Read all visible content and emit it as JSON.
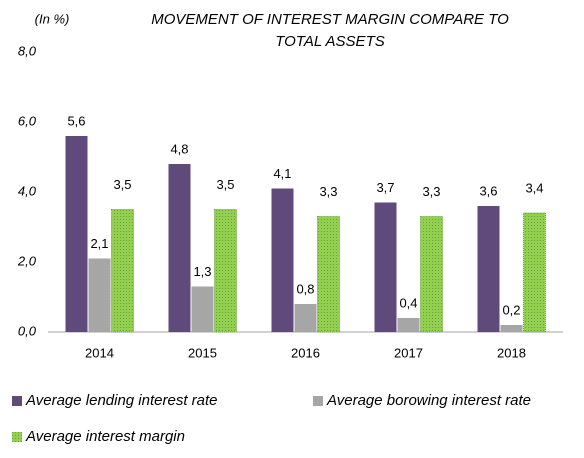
{
  "chart_data": {
    "type": "bar",
    "title": [
      "MOVEMENT OF INTEREST MARGIN COMPARE  TO",
      "TOTAL ASSETS"
    ],
    "y_label": "(In %)",
    "categories": [
      "2014",
      "2015",
      "2016",
      "2017",
      "2018"
    ],
    "series": [
      {
        "name": "Average lending interest rate",
        "color": "#604a7b",
        "values": [
          5.6,
          4.8,
          4.1,
          3.7,
          3.6
        ],
        "value_labels": [
          "5,6",
          "4,8",
          "4,1",
          "3,7",
          "3,6"
        ]
      },
      {
        "name": "Average borowing interest rate",
        "color": "#a6a6a6",
        "values": [
          2.1,
          1.3,
          0.8,
          0.4,
          0.2
        ],
        "value_labels": [
          "2,1",
          "1,3",
          "0,8",
          "0,4",
          "0,2"
        ]
      },
      {
        "name": "Average interest margin",
        "color": "#92d050",
        "values": [
          3.5,
          3.5,
          3.3,
          3.3,
          3.4
        ],
        "value_labels": [
          "3,5",
          "3,5",
          "3,3",
          "3,3",
          "3,4"
        ]
      }
    ],
    "ylim": [
      0,
      8
    ],
    "yticks": [
      {
        "value": 0,
        "label": "0,0"
      },
      {
        "value": 2,
        "label": "2,0"
      },
      {
        "value": 4,
        "label": "4,0"
      },
      {
        "value": 6,
        "label": "6,0"
      },
      {
        "value": 8,
        "label": "8,0"
      }
    ],
    "grid": false
  }
}
